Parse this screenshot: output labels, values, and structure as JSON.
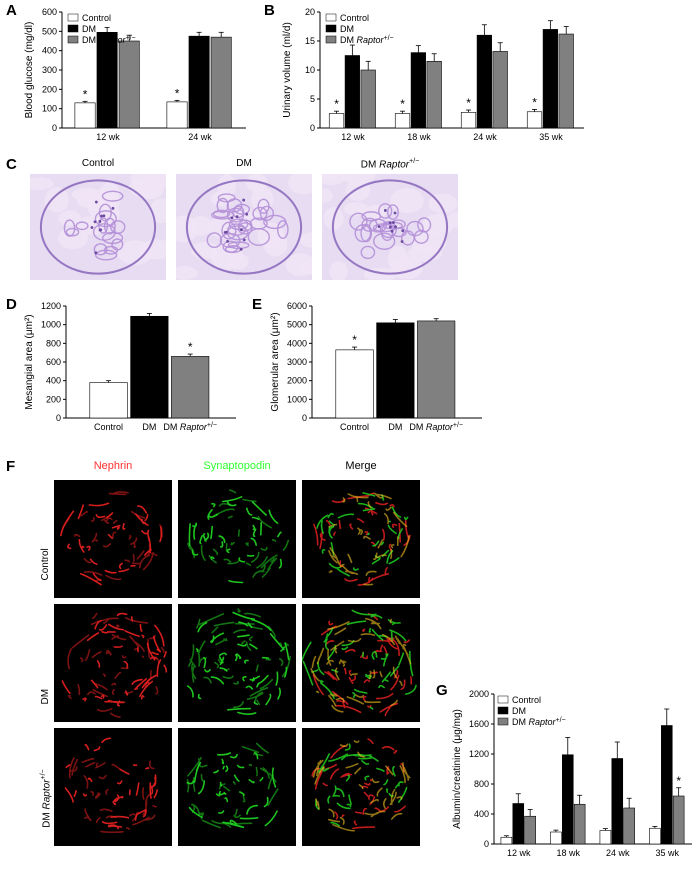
{
  "panelA": {
    "label": "A",
    "type": "bar",
    "ylabel": "Blood glucose (mg/dl)",
    "ylim": [
      0,
      600
    ],
    "ytick_step": 100,
    "groups": [
      "12 wk",
      "24 wk"
    ],
    "series": [
      {
        "name": "Control",
        "color": "#ffffff",
        "values": [
          130,
          135
        ],
        "err": [
          8,
          8
        ],
        "star": [
          true,
          true
        ]
      },
      {
        "name": "DM",
        "color": "#000000",
        "values": [
          495,
          475
        ],
        "err": [
          25,
          20
        ],
        "star": [
          false,
          false
        ]
      },
      {
        "name": "DM Raptor+/−",
        "color": "#808080",
        "values": [
          450,
          470
        ],
        "err": [
          30,
          25
        ],
        "star": [
          false,
          false
        ]
      }
    ],
    "label_fontsize": 10,
    "tick_fontsize": 9,
    "background_color": "#ffffff",
    "axis_color": "#000000"
  },
  "panelB": {
    "label": "B",
    "type": "bar",
    "ylabel": "Urinary volume (ml/d)",
    "ylim": [
      0,
      20
    ],
    "ytick_step": 5,
    "groups": [
      "12 wk",
      "18 wk",
      "24 wk",
      "35 wk"
    ],
    "series": [
      {
        "name": "Control",
        "color": "#ffffff",
        "values": [
          2.5,
          2.5,
          2.7,
          2.8
        ],
        "err": [
          0.4,
          0.4,
          0.4,
          0.4
        ],
        "star": [
          true,
          true,
          true,
          true
        ]
      },
      {
        "name": "DM",
        "color": "#000000",
        "values": [
          12.5,
          13,
          16,
          17
        ],
        "err": [
          1.8,
          1.2,
          1.8,
          1.5
        ],
        "star": [
          false,
          false,
          false,
          false
        ]
      },
      {
        "name": "DM Raptor+/−",
        "color": "#808080",
        "values": [
          10,
          11.5,
          13.2,
          16.2
        ],
        "err": [
          1.5,
          1.3,
          1.5,
          1.3
        ],
        "star": [
          false,
          false,
          false,
          false
        ]
      }
    ],
    "label_fontsize": 10,
    "tick_fontsize": 9,
    "background_color": "#ffffff",
    "axis_color": "#000000"
  },
  "panelC": {
    "label": "C",
    "type": "micrograph",
    "images": [
      "Control",
      "DM",
      "DM Raptor+/−"
    ],
    "stain_color": "#b490d8",
    "background_color": "#e8dcf2"
  },
  "panelD": {
    "label": "D",
    "type": "bar",
    "ylabel": "Mesangial area (μm²)",
    "ylim": [
      0,
      1200
    ],
    "ytick_step": 200,
    "groups": [
      ""
    ],
    "categoriesX": [
      "Control",
      "DM",
      "DM Raptor+/−"
    ],
    "series": [
      {
        "name": "Control",
        "color": "#ffffff",
        "values": [
          380
        ],
        "err": [
          20
        ],
        "star": [
          false
        ]
      },
      {
        "name": "DM",
        "color": "#000000",
        "values": [
          1090
        ],
        "err": [
          30
        ],
        "star": [
          false
        ]
      },
      {
        "name": "DM Raptor+/−",
        "color": "#808080",
        "values": [
          660
        ],
        "err": [
          25
        ],
        "star": [
          true
        ]
      }
    ],
    "label_fontsize": 10,
    "tick_fontsize": 9,
    "background_color": "#ffffff",
    "axis_color": "#000000"
  },
  "panelE": {
    "label": "E",
    "type": "bar",
    "ylabel": "Glomerular area (μm²)",
    "ylim": [
      0,
      6000
    ],
    "ytick_step": 1000,
    "groups": [
      ""
    ],
    "categoriesX": [
      "Control",
      "DM",
      "DM Raptor+/−"
    ],
    "series": [
      {
        "name": "Control",
        "color": "#ffffff",
        "values": [
          3650
        ],
        "err": [
          150
        ],
        "star": [
          true
        ]
      },
      {
        "name": "DM",
        "color": "#000000",
        "values": [
          5100
        ],
        "err": [
          180
        ],
        "star": [
          false
        ]
      },
      {
        "name": "DM Raptor+/−",
        "color": "#808080",
        "values": [
          5200
        ],
        "err": [
          120
        ],
        "star": [
          false
        ]
      }
    ],
    "label_fontsize": 10,
    "tick_fontsize": 9,
    "background_color": "#ffffff",
    "axis_color": "#000000"
  },
  "panelF": {
    "label": "F",
    "type": "fluorescence",
    "col_labels": [
      "Nephrin",
      "Synaptopodin",
      "Merge"
    ],
    "col_colors": [
      "#ff3030",
      "#30ff30",
      "#000000"
    ],
    "row_labels": [
      "Control",
      "DM",
      "DM Raptor+/−"
    ],
    "background_color": "#000000",
    "nephrin_color": "#e02020",
    "synapto_color": "#20d020",
    "merge_color": "#f0c020"
  },
  "panelG": {
    "label": "G",
    "type": "bar",
    "ylabel": "Albumin/creatinine (μg/mg)",
    "ylim": [
      0,
      2000
    ],
    "ytick_step": 400,
    "groups": [
      "12 wk",
      "18 wk",
      "24 wk",
      "35 wk"
    ],
    "series": [
      {
        "name": "Control",
        "color": "#ffffff",
        "values": [
          90,
          160,
          180,
          210
        ],
        "err": [
          20,
          25,
          25,
          25
        ],
        "star": [
          false,
          false,
          false,
          false
        ]
      },
      {
        "name": "DM",
        "color": "#000000",
        "values": [
          540,
          1190,
          1140,
          1580
        ],
        "err": [
          130,
          230,
          220,
          220
        ],
        "star": [
          false,
          false,
          false,
          false
        ]
      },
      {
        "name": "DM Raptor+/−",
        "color": "#808080",
        "values": [
          370,
          530,
          480,
          640
        ],
        "err": [
          90,
          120,
          130,
          110
        ],
        "star": [
          false,
          false,
          false,
          true
        ]
      }
    ],
    "label_fontsize": 10,
    "tick_fontsize": 9,
    "background_color": "#ffffff",
    "axis_color": "#000000"
  }
}
